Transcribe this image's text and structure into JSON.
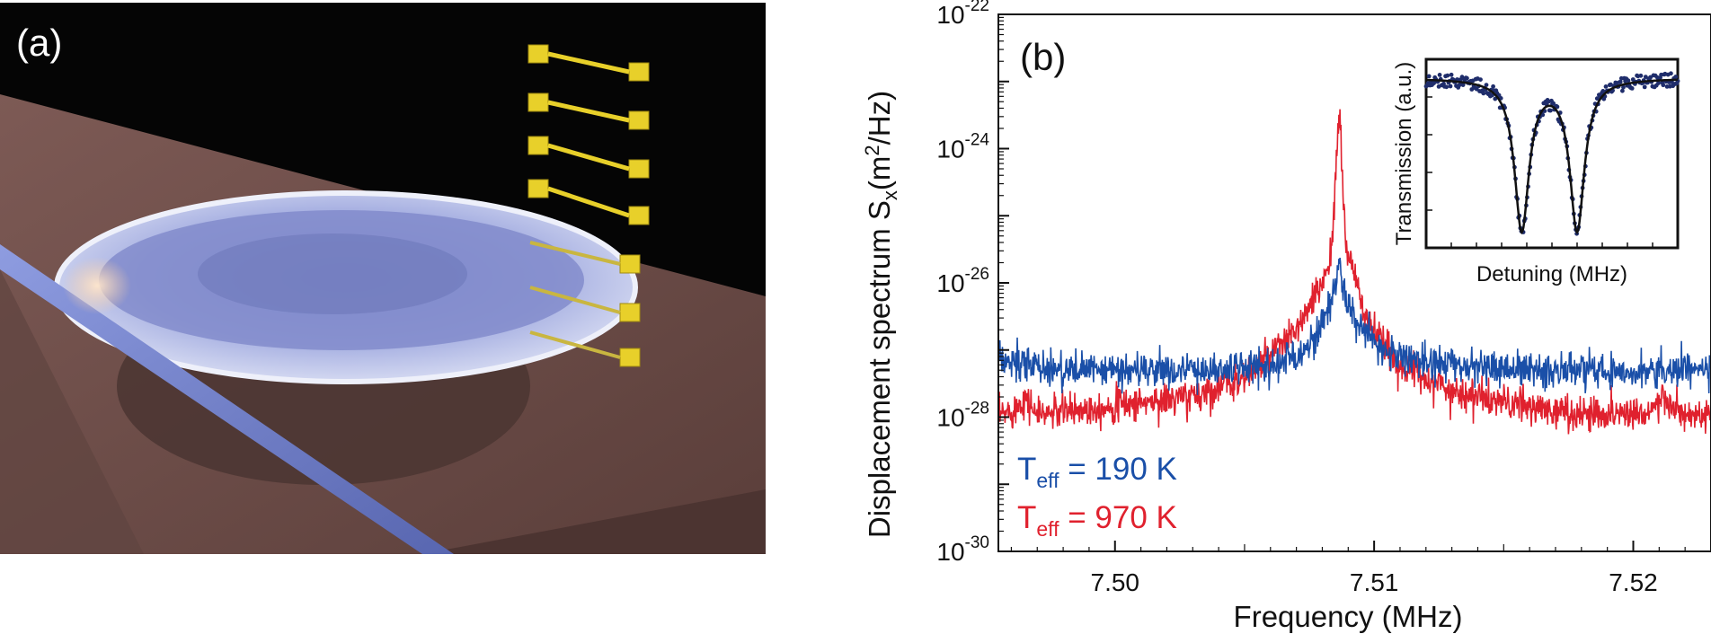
{
  "panel_a": {
    "label": "(a)",
    "colors": {
      "background": "#050505",
      "substrate": "#6e4e4a",
      "disk": "#a9b3e0",
      "fiber": "#6f7fc8",
      "heater": "#e8d02a"
    }
  },
  "panel_b": {
    "label": "(b)",
    "legend": [
      {
        "base": "T",
        "sub": "eff",
        "rest": " = 190 K",
        "color": "#1a4fa8"
      },
      {
        "base": "T",
        "sub": "eff",
        "rest": " = 970 K",
        "color": "#e0212e"
      }
    ],
    "inset": {
      "ylabel": "Transmission (a.u.)",
      "xlabel": "Detuning (MHz)"
    }
  },
  "chart_data": [
    {
      "type": "line",
      "xlabel": "Frequency (MHz)",
      "ylabel": {
        "main": "Displacement spectrum  S",
        "sub": "x",
        "units_open": "(m",
        "units_sup": "2",
        "units_close": "/Hz)"
      },
      "xscale": "linear",
      "yscale": "log",
      "xlim": [
        7.4955,
        7.523
      ],
      "ylim": [
        1e-30,
        1e-22
      ],
      "xticks": [
        {
          "value": 7.5,
          "label": "7.50"
        },
        {
          "value": 7.51,
          "label": "7.51"
        },
        {
          "value": 7.52,
          "label": "7.52"
        }
      ],
      "yticks": [
        {
          "exponent": -22,
          "base": "10",
          "sup": "-22"
        },
        {
          "exponent": -24,
          "base": "10",
          "sup": "-24"
        },
        {
          "exponent": -26,
          "base": "10",
          "sup": "-26"
        },
        {
          "exponent": -28,
          "base": "10",
          "sup": "-28"
        },
        {
          "exponent": -30,
          "base": "10",
          "sup": "-30"
        }
      ],
      "grid": false,
      "series": [
        {
          "name": "T_eff = 190 K",
          "color": "#1a4fa8",
          "x": [
            7.4955,
            7.498,
            7.5,
            7.502,
            7.504,
            7.506,
            7.507,
            7.5075,
            7.508,
            7.5084,
            7.50865,
            7.5089,
            7.5095,
            7.51,
            7.511,
            7.513,
            7.516,
            7.52,
            7.523
          ],
          "y": [
            7e-28,
            5e-28,
            5e-28,
            5e-28,
            5e-28,
            6e-28,
            8e-28,
            1.2e-27,
            2.5e-27,
            6e-27,
            2e-26,
            6e-27,
            2e-27,
            1.2e-27,
            8e-28,
            6e-28,
            5e-28,
            5e-28,
            5e-28
          ]
        },
        {
          "name": "T_eff = 970 K",
          "color": "#e0212e",
          "x": [
            7.4955,
            7.4962,
            7.4965,
            7.497,
            7.5,
            7.503,
            7.505,
            7.506,
            7.507,
            7.5075,
            7.508,
            7.5084,
            7.50865,
            7.5089,
            7.5095,
            7.51,
            7.511,
            7.513,
            7.5145,
            7.516,
            7.518,
            7.5205,
            7.5212,
            7.522,
            7.523
          ],
          "y": [
            1e-28,
            1.4e-28,
            2e-28,
            1.1e-28,
            1.5e-28,
            2e-28,
            4e-28,
            8e-28,
            2e-27,
            4e-27,
            1e-26,
            4e-26,
            4e-24,
            4e-26,
            5e-27,
            1.8e-27,
            6e-28,
            2.5e-28,
            1.8e-28,
            1.4e-28,
            1.1e-28,
            1.2e-28,
            1.8e-28,
            1e-28,
            1e-28
          ]
        }
      ]
    },
    {
      "type": "scatter",
      "inset": true,
      "xlabel": "Detuning (MHz)",
      "ylabel": "Transmission (a.u.)",
      "xlim": [
        0,
        1
      ],
      "ylim": [
        0,
        1
      ],
      "dips": [
        {
          "center": 0.38,
          "width": 0.035,
          "depth": 0.92
        },
        {
          "center": 0.6,
          "width": 0.035,
          "depth": 0.92
        }
      ],
      "baseline": 0.9,
      "series": [
        {
          "name": "data",
          "color": "#1f2d6b",
          "marker": "circle"
        },
        {
          "name": "fit",
          "color": "#111111",
          "marker": "none"
        }
      ]
    }
  ]
}
